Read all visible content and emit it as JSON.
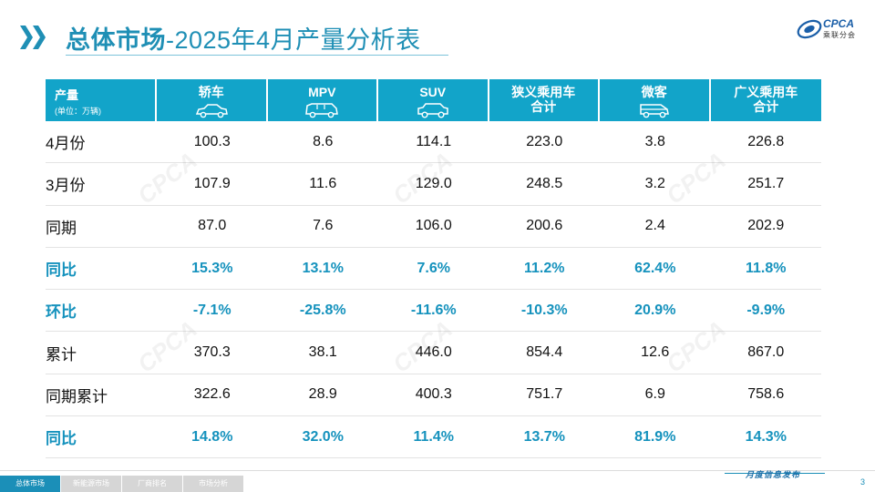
{
  "header": {
    "title_bold": "总体市场",
    "title_rest": "-2025年4月产量分析表",
    "logo_text": "CPCA",
    "logo_sub": "乘联分会"
  },
  "table": {
    "corner_label": "产量",
    "corner_unit": "(单位：万辆)",
    "columns": [
      {
        "label": "轿车",
        "line2": "",
        "icon": "sedan-icon"
      },
      {
        "label": "MPV",
        "line2": "",
        "icon": "mpv-icon"
      },
      {
        "label": "SUV",
        "line2": "",
        "icon": "suv-icon"
      },
      {
        "label": "狭义乘用车",
        "line2": "合计",
        "icon": ""
      },
      {
        "label": "微客",
        "line2": "",
        "icon": "minivan-icon"
      },
      {
        "label": "广义乘用车",
        "line2": "合计",
        "icon": ""
      }
    ],
    "rows": [
      {
        "label": "4月份",
        "values": [
          "100.3",
          "8.6",
          "114.1",
          "223.0",
          "3.8",
          "226.8"
        ],
        "highlight": false
      },
      {
        "label": "3月份",
        "values": [
          "107.9",
          "11.6",
          "129.0",
          "248.5",
          "3.2",
          "251.7"
        ],
        "highlight": false
      },
      {
        "label": "同期",
        "values": [
          "87.0",
          "7.6",
          "106.0",
          "200.6",
          "2.4",
          "202.9"
        ],
        "highlight": false
      },
      {
        "label": "同比",
        "values": [
          "15.3%",
          "13.1%",
          "7.6%",
          "11.2%",
          "62.4%",
          "11.8%"
        ],
        "highlight": true
      },
      {
        "label": "环比",
        "values": [
          "-7.1%",
          "-25.8%",
          "-11.6%",
          "-10.3%",
          "20.9%",
          "-9.9%"
        ],
        "highlight": true
      },
      {
        "label": "累计",
        "values": [
          "370.3",
          "38.1",
          "446.0",
          "854.4",
          "12.6",
          "867.0"
        ],
        "highlight": false
      },
      {
        "label": "同期累计",
        "values": [
          "322.6",
          "28.9",
          "400.3",
          "751.7",
          "6.9",
          "758.6"
        ],
        "highlight": false
      },
      {
        "label": "同比",
        "values": [
          "14.8%",
          "32.0%",
          "11.4%",
          "13.7%",
          "81.9%",
          "14.3%"
        ],
        "highlight": true
      }
    ]
  },
  "footer": {
    "tabs": [
      "总体市场",
      "新能源市场",
      "厂商排名",
      "市场分析"
    ],
    "active_tab": 0,
    "label": "月度信息发布",
    "page": "3"
  },
  "colors": {
    "accent": "#12a4c9",
    "highlight_text": "#1592bd",
    "title": "#1f8fb5"
  }
}
